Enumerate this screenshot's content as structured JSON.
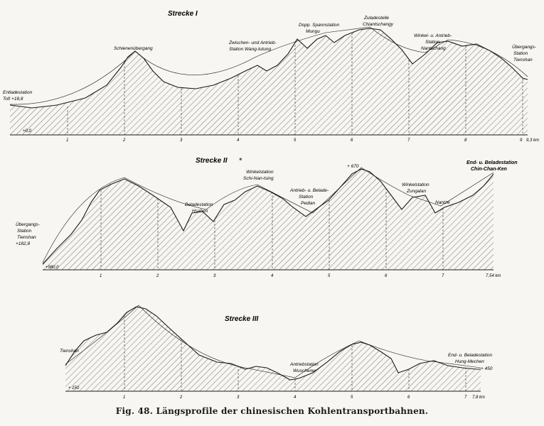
{
  "caption": "Fig. 48.  Längsprofile der chinesischen Kohlentransportbahnen.",
  "sections": [
    {
      "title": "Strecke I",
      "ticks": [
        "+0,0",
        "1",
        "2",
        "3",
        "4",
        "5",
        "6",
        "7",
        "8",
        "9",
        "9,3 km"
      ],
      "stations": [
        [
          "Entladestation",
          "Tofi +18,8"
        ],
        [
          "Schienenübergang"
        ],
        [
          "Zwischen- und Antrieb-",
          "Station Wang-tutung"
        ],
        [
          "Dopp. Spannstation",
          "Mungu"
        ],
        [
          "Zuladestelle",
          "Chiantschangy"
        ],
        [
          "Winkel- u. Antrieb-",
          "Station",
          "Nantschang"
        ],
        [
          "Übergangs-",
          "Station",
          "Tienshan"
        ]
      ]
    },
    {
      "title": "Strecke II",
      "ticks": [
        "+980,0",
        "1",
        "2",
        "3",
        "4",
        "5",
        "6",
        "7",
        "7,54 km"
      ],
      "stations": [
        [
          "Übergangs-",
          "Station",
          "Tienshan",
          "+182,8"
        ],
        [
          "Beladestation",
          "Hsahen"
        ],
        [
          "Winkelstation",
          "Schi-Nan-tsing"
        ],
        [
          "Antrieb- u. Belade-",
          "Station",
          "Pedian"
        ],
        [
          "+ 670"
        ],
        [
          "Winkelstation",
          "Zungalan"
        ],
        [
          "Nantze"
        ],
        [
          "End- u. Beladestation",
          "Chin-Chan-Ken"
        ]
      ]
    },
    {
      "title": "Strecke III",
      "ticks": [
        "+ 150",
        "1",
        "2",
        "3",
        "4",
        "5",
        "6",
        "7",
        "7,8 km"
      ],
      "stations": [
        [
          "Tienshan"
        ],
        [
          "Antriebstation",
          "Wuschenw"
        ],
        [
          "End- u. Beladestation",
          "Hung-Mechen",
          "+ 450"
        ]
      ]
    }
  ],
  "colors": {
    "ink": "#1a1a1a",
    "hatch": "#4a4a4a",
    "paper": "#f7f6f2"
  }
}
